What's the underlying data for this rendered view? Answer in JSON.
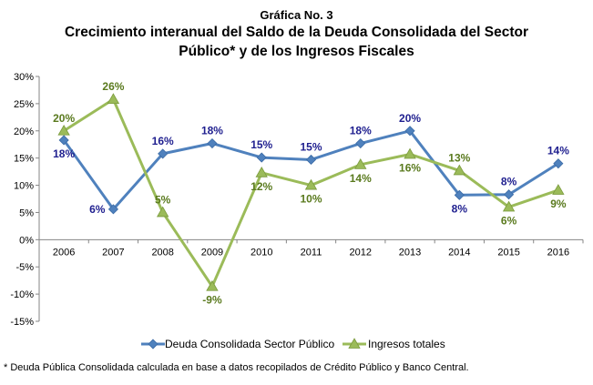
{
  "title": {
    "kicker": "Gráfica No. 3",
    "line1": "Crecimiento interanual del Saldo de la Deuda Consolidada del Sector",
    "line2": "Público* y de los Ingresos Fiscales"
  },
  "footnote": "* Deuda Pública Consolidada calculada en base a datos recopilados de Crédito Público y Banco Central.",
  "chart_data": {
    "type": "line",
    "categories": [
      "2006",
      "2007",
      "2008",
      "2009",
      "2010",
      "2011",
      "2012",
      "2013",
      "2014",
      "2015",
      "2016"
    ],
    "ylim": [
      -15,
      30
    ],
    "yticks": [
      -15,
      -10,
      -5,
      0,
      5,
      10,
      15,
      20,
      25,
      30
    ],
    "ytick_labels": [
      "-15%",
      "-10%",
      "-5%",
      "0%",
      "5%",
      "10%",
      "15%",
      "20%",
      "25%",
      "30%"
    ],
    "grid": false,
    "legend_position": "bottom",
    "series": [
      {
        "name": "Deuda Consolidada Sector Público",
        "color": "#4f81bd",
        "label_color": "#1f1f8f",
        "marker": "diamond",
        "values": [
          18.3,
          5.6,
          15.8,
          17.7,
          15.1,
          14.7,
          17.7,
          20.0,
          8.2,
          8.3,
          14.0
        ],
        "labels": [
          "18%",
          "6%",
          "16%",
          "18%",
          "15%",
          "15%",
          "18%",
          "20%",
          "8%",
          "8%",
          "14%"
        ],
        "label_pos": [
          "below",
          "left",
          "above",
          "above",
          "above",
          "above",
          "above",
          "above",
          "below",
          "above",
          "above"
        ]
      },
      {
        "name": "Ingresos totales",
        "color": "#9bbb59",
        "label_color": "#5a7a1e",
        "marker": "triangle",
        "values": [
          20.0,
          25.8,
          5.0,
          -8.6,
          12.3,
          10.0,
          13.8,
          15.7,
          12.7,
          6.0,
          9.1
        ],
        "labels": [
          "20%",
          "26%",
          "5%",
          "-9%",
          "12%",
          "10%",
          "14%",
          "16%",
          "13%",
          "6%",
          "9%"
        ],
        "label_pos": [
          "above",
          "above",
          "above",
          "below",
          "below",
          "below",
          "below",
          "below",
          "above",
          "below",
          "below"
        ]
      }
    ]
  }
}
